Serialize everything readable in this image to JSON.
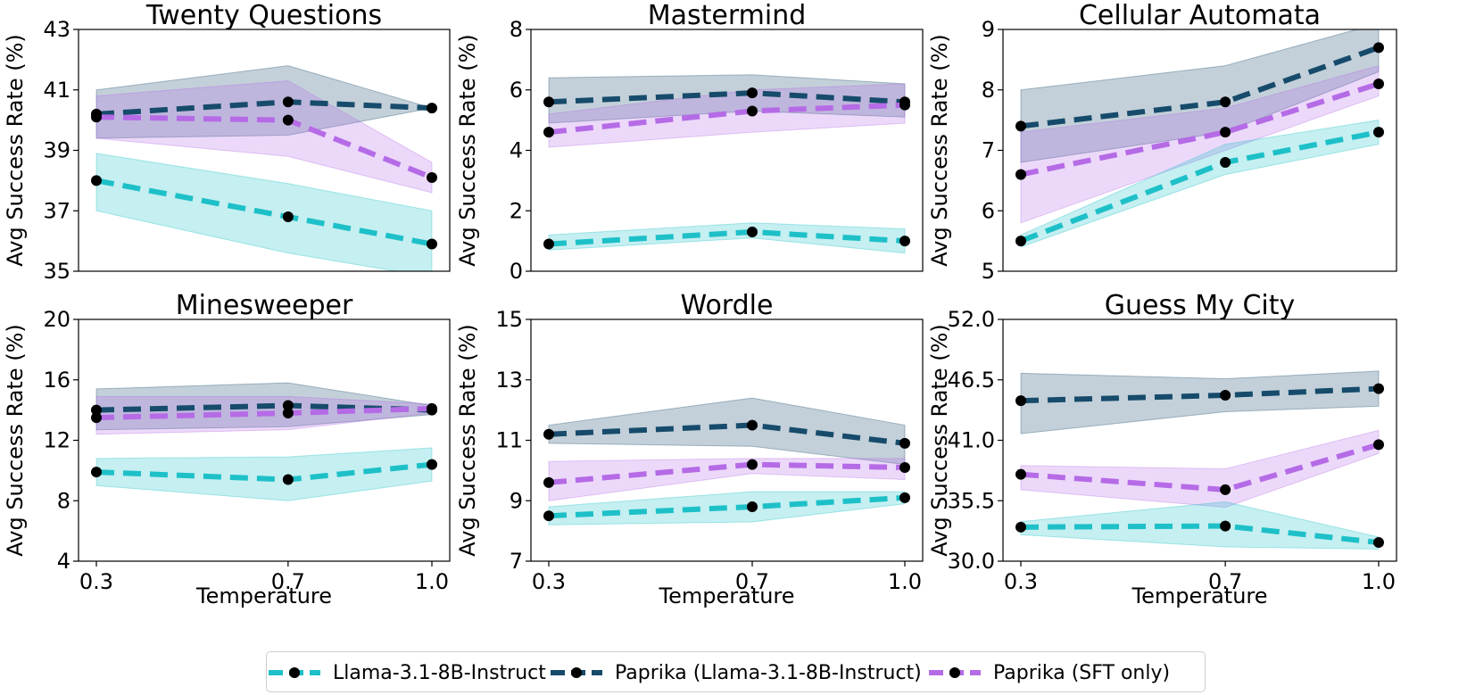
{
  "colors": {
    "llama": "#1ec0c8",
    "paprika": "#174b6b",
    "sft": "#b56be6"
  },
  "legend": [
    {
      "key": "llama",
      "label": "Llama-3.1-8B-Instruct"
    },
    {
      "key": "paprika",
      "label": "Paprika (Llama-3.1-8B-Instruct)"
    },
    {
      "key": "sft",
      "label": "Paprika (SFT only)"
    }
  ],
  "chart_data": [
    {
      "type": "line",
      "title": "Twenty Questions",
      "xlabel": "",
      "ylabel": "Avg Success Rate (%)",
      "x": [
        0.3,
        0.7,
        1.0
      ],
      "xlim": [
        0.3,
        1.0
      ],
      "ylim": [
        35,
        43
      ],
      "yticks": [
        "35",
        "37",
        "39",
        "41",
        "43"
      ],
      "xticks": [],
      "series": [
        {
          "key": "paprika",
          "name": "Paprika (Llama-3.1-8B-Instruct)",
          "values": [
            40.2,
            40.6,
            40.4
          ],
          "lower": [
            39.4,
            39.5,
            40.4
          ],
          "upper": [
            41.0,
            41.8,
            40.4
          ]
        },
        {
          "key": "sft",
          "name": "Paprika (SFT only)",
          "values": [
            40.1,
            40.0,
            38.1
          ],
          "lower": [
            39.4,
            38.8,
            37.6
          ],
          "upper": [
            40.8,
            41.3,
            38.6
          ]
        },
        {
          "key": "llama",
          "name": "Llama-3.1-8B-Instruct",
          "values": [
            38.0,
            36.8,
            35.9
          ],
          "lower": [
            37.0,
            35.6,
            34.8
          ],
          "upper": [
            38.9,
            37.9,
            37.0
          ]
        }
      ]
    },
    {
      "type": "line",
      "title": "Mastermind",
      "xlabel": "",
      "ylabel": "Avg Success Rate (%)",
      "x": [
        0.3,
        0.7,
        1.0
      ],
      "xlim": [
        0.3,
        1.0
      ],
      "ylim": [
        0,
        8
      ],
      "yticks": [
        "0",
        "2",
        "4",
        "6",
        "8"
      ],
      "xticks": [],
      "series": [
        {
          "key": "paprika",
          "name": "Paprika (Llama-3.1-8B-Instruct)",
          "values": [
            5.6,
            5.9,
            5.6
          ],
          "lower": [
            4.9,
            5.3,
            5.1
          ],
          "upper": [
            6.4,
            6.5,
            6.2
          ]
        },
        {
          "key": "sft",
          "name": "Paprika (SFT only)",
          "values": [
            4.6,
            5.3,
            5.5
          ],
          "lower": [
            4.1,
            4.6,
            4.9
          ],
          "upper": [
            5.2,
            6.0,
            6.2
          ]
        },
        {
          "key": "llama",
          "name": "Llama-3.1-8B-Instruct",
          "values": [
            0.9,
            1.3,
            1.0
          ],
          "lower": [
            0.7,
            1.1,
            0.6
          ],
          "upper": [
            1.2,
            1.6,
            1.4
          ]
        }
      ]
    },
    {
      "type": "line",
      "title": "Cellular Automata",
      "xlabel": "",
      "ylabel": "Avg Success Rate (%)",
      "x": [
        0.3,
        0.7,
        1.0
      ],
      "xlim": [
        0.3,
        1.0
      ],
      "ylim": [
        5,
        9
      ],
      "yticks": [
        "5",
        "6",
        "7",
        "8",
        "9"
      ],
      "xticks": [],
      "series": [
        {
          "key": "paprika",
          "name": "Paprika (Llama-3.1-8B-Instruct)",
          "values": [
            7.4,
            7.8,
            8.7
          ],
          "lower": [
            6.8,
            7.3,
            8.3
          ],
          "upper": [
            8.0,
            8.4,
            9.1
          ]
        },
        {
          "key": "sft",
          "name": "Paprika (SFT only)",
          "values": [
            6.6,
            7.3,
            8.1
          ],
          "lower": [
            5.8,
            7.0,
            7.9
          ],
          "upper": [
            7.3,
            7.7,
            8.4
          ]
        },
        {
          "key": "llama",
          "name": "Llama-3.1-8B-Instruct",
          "values": [
            5.5,
            6.8,
            7.3
          ],
          "lower": [
            5.4,
            6.6,
            7.1
          ],
          "upper": [
            5.6,
            7.1,
            7.5
          ]
        }
      ]
    },
    {
      "type": "line",
      "title": "Minesweeper",
      "xlabel": "Temperature",
      "ylabel": "Avg Success Rate (%)",
      "x": [
        0.3,
        0.7,
        1.0
      ],
      "xlim": [
        0.3,
        1.0
      ],
      "ylim": [
        4,
        20
      ],
      "yticks": [
        "4",
        "8",
        "12",
        "16",
        "20"
      ],
      "xticks": [
        "0.3",
        "0.7",
        "1.0"
      ],
      "series": [
        {
          "key": "paprika",
          "name": "Paprika (Llama-3.1-8B-Instruct)",
          "values": [
            14.0,
            14.3,
            14.0
          ],
          "lower": [
            12.7,
            12.9,
            13.7
          ],
          "upper": [
            15.4,
            15.8,
            14.3
          ]
        },
        {
          "key": "sft",
          "name": "Paprika (SFT only)",
          "values": [
            13.5,
            13.8,
            14.1
          ],
          "lower": [
            12.4,
            12.7,
            13.8
          ],
          "upper": [
            14.9,
            14.9,
            14.4
          ]
        },
        {
          "key": "llama",
          "name": "Llama-3.1-8B-Instruct",
          "values": [
            9.9,
            9.4,
            10.4
          ],
          "lower": [
            9.0,
            8.0,
            9.3
          ],
          "upper": [
            10.8,
            10.9,
            11.5
          ]
        }
      ]
    },
    {
      "type": "line",
      "title": "Wordle",
      "xlabel": "Temperature",
      "ylabel": "Avg Success Rate (%)",
      "x": [
        0.3,
        0.7,
        1.0
      ],
      "xlim": [
        0.3,
        1.0
      ],
      "ylim": [
        7,
        15
      ],
      "yticks": [
        "7",
        "9",
        "11",
        "13",
        "15"
      ],
      "xticks": [
        "0.3",
        "0.7",
        "1.0"
      ],
      "series": [
        {
          "key": "paprika",
          "name": "Paprika (Llama-3.1-8B-Instruct)",
          "values": [
            11.2,
            11.5,
            10.9
          ],
          "lower": [
            10.9,
            10.8,
            10.2
          ],
          "upper": [
            11.5,
            12.4,
            11.5
          ]
        },
        {
          "key": "sft",
          "name": "Paprika (SFT only)",
          "values": [
            9.6,
            10.2,
            10.1
          ],
          "lower": [
            9.0,
            9.9,
            9.7
          ],
          "upper": [
            10.3,
            10.4,
            10.4
          ]
        },
        {
          "key": "llama",
          "name": "Llama-3.1-8B-Instruct",
          "values": [
            8.5,
            8.8,
            9.1
          ],
          "lower": [
            8.2,
            8.3,
            8.9
          ],
          "upper": [
            8.8,
            9.3,
            9.3
          ]
        }
      ]
    },
    {
      "type": "line",
      "title": "Guess My City",
      "xlabel": "Temperature",
      "ylabel": "Avg Success Rate (%)",
      "x": [
        0.3,
        0.7,
        1.0
      ],
      "xlim": [
        0.3,
        1.0
      ],
      "ylim": [
        30.0,
        52.0
      ],
      "yticks": [
        "30.0",
        "35.5",
        "41.0",
        "46.5",
        "52.0"
      ],
      "xticks": [
        "0.3",
        "0.7",
        "1.0"
      ],
      "series": [
        {
          "key": "paprika",
          "name": "Paprika (Llama-3.1-8B-Instruct)",
          "values": [
            44.6,
            45.1,
            45.7
          ],
          "lower": [
            41.6,
            43.6,
            44.1
          ],
          "upper": [
            47.1,
            46.6,
            47.3
          ]
        },
        {
          "key": "sft",
          "name": "Paprika (SFT only)",
          "values": [
            37.9,
            36.5,
            40.6
          ],
          "lower": [
            36.5,
            34.9,
            39.8
          ],
          "upper": [
            38.7,
            38.4,
            41.9
          ]
        },
        {
          "key": "llama",
          "name": "Llama-3.1-8B-Instruct",
          "values": [
            33.1,
            33.2,
            31.7
          ],
          "lower": [
            32.4,
            31.3,
            31.1
          ],
          "upper": [
            33.6,
            35.4,
            32.2
          ]
        }
      ]
    }
  ]
}
